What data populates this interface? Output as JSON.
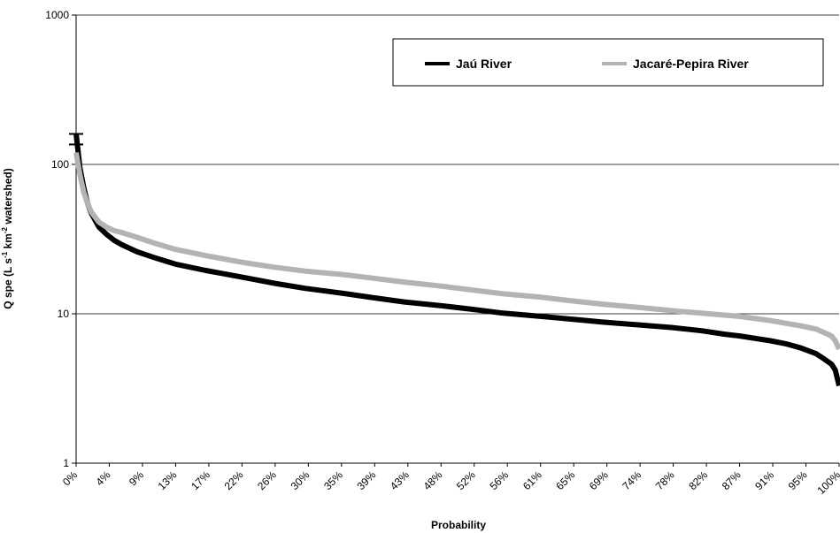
{
  "chart_data": {
    "type": "line",
    "title": "",
    "xlabel": "Probability",
    "ylabel": {
      "main": "Q spe (L s",
      "sup1": "-1",
      "mid": " km",
      "sup2": "-2",
      "end": " watershed)"
    },
    "y_scale": "log",
    "ylim": [
      1,
      1000
    ],
    "y_ticks": [
      "1",
      "10",
      "100",
      "1000"
    ],
    "xlim": [
      0,
      100
    ],
    "x_tick_labels": [
      "0%",
      "4%",
      "9%",
      "13%",
      "17%",
      "22%",
      "26%",
      "30%",
      "35%",
      "39%",
      "43%",
      "48%",
      "52%",
      "56%",
      "61%",
      "65%",
      "69%",
      "74%",
      "78%",
      "82%",
      "87%",
      "91%",
      "95%",
      "100%"
    ],
    "grid": "horizontal",
    "legend_position": "top-right",
    "series": [
      {
        "name": "Jaú River",
        "color": "#000000",
        "x": [
          0,
          0.5,
          1,
          1.5,
          2,
          3,
          4,
          5,
          6,
          8,
          10,
          13,
          17,
          22,
          26,
          30,
          35,
          39,
          43,
          48,
          52,
          56,
          61,
          65,
          69,
          74,
          78,
          82,
          85,
          87,
          91,
          93,
          95,
          97,
          98,
          99,
          99.5,
          100
        ],
        "y": [
          160,
          95,
          70,
          55,
          47,
          38,
          34,
          31,
          29,
          26,
          24,
          21.5,
          19.5,
          17.5,
          16,
          14.8,
          13.7,
          12.8,
          12,
          11.3,
          10.7,
          10.1,
          9.6,
          9.2,
          8.8,
          8.4,
          8.1,
          7.7,
          7.3,
          7.1,
          6.6,
          6.3,
          5.9,
          5.4,
          5.0,
          4.6,
          4.2,
          3.3
        ]
      },
      {
        "name": "Jacaré-Pepira River",
        "color": "#b3b3b3",
        "x": [
          0,
          0.5,
          1,
          1.5,
          2,
          3,
          4,
          5,
          6,
          8,
          10,
          13,
          17,
          22,
          26,
          30,
          35,
          39,
          43,
          48,
          52,
          56,
          61,
          65,
          69,
          74,
          78,
          82,
          87,
          91,
          95,
          97,
          98,
          99,
          99.5,
          100
        ],
        "y": [
          120,
          85,
          65,
          55,
          48,
          41,
          38,
          36,
          35,
          32.5,
          30,
          27,
          24.5,
          22,
          20.5,
          19.3,
          18.3,
          17.3,
          16.3,
          15.3,
          14.4,
          13.6,
          12.9,
          12.2,
          11.6,
          11,
          10.5,
          10.1,
          9.6,
          9.0,
          8.3,
          7.9,
          7.5,
          7.1,
          6.6,
          5.8
        ]
      }
    ]
  }
}
